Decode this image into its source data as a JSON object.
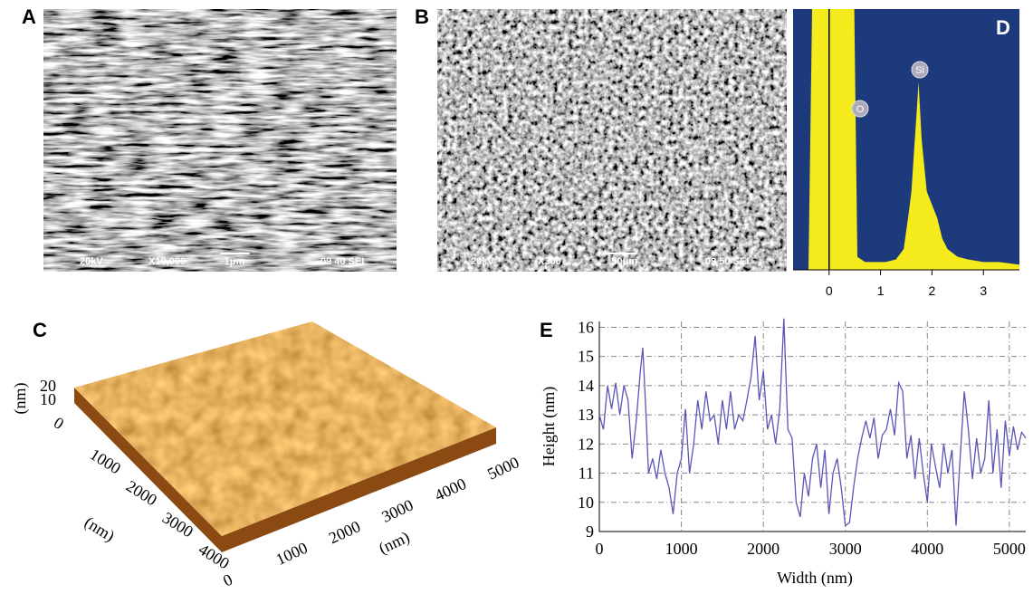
{
  "panels": {
    "A": {
      "label": "A",
      "info": [
        "20kV",
        "X10,000",
        "1μm",
        "09 40 SEI"
      ]
    },
    "B": {
      "label": "B",
      "info": [
        "20kV",
        "X300",
        "50μm",
        "09 50 SEI"
      ]
    },
    "C": {
      "label": "C",
      "z_ticks": [
        10,
        20
      ],
      "z_label": "(nm)",
      "y_ticks": [
        0,
        1000,
        2000,
        3000,
        4000
      ],
      "y_label": "(nm)",
      "x_ticks": [
        0,
        1000,
        2000,
        3000,
        4000,
        5000
      ],
      "x_label": "(nm)"
    }
  },
  "chart_data": [
    {
      "type": "area",
      "label": "D",
      "background": "#1d3a7c",
      "color": "#f4ea1c",
      "x": [
        -0.7,
        -0.4,
        -0.33,
        0.49,
        0.55,
        0.7,
        0.9,
        1.1,
        1.3,
        1.45,
        1.55,
        1.6,
        1.65,
        1.7,
        1.74,
        1.8,
        1.9,
        2.0,
        2.1,
        2.2,
        2.3,
        2.5,
        2.7,
        3.0,
        3.3,
        3.7
      ],
      "values": [
        0,
        0,
        100,
        100,
        5,
        3,
        3,
        3,
        4,
        8,
        22,
        30,
        45,
        60,
        72,
        50,
        30,
        25,
        20,
        12,
        8,
        5,
        4,
        3,
        3,
        2
      ],
      "annotations": [
        "O",
        "Si"
      ],
      "xlim": [
        -0.7,
        3.7
      ],
      "xticks": [
        0,
        1,
        2,
        3
      ],
      "ylim": [
        0,
        100
      ]
    },
    {
      "type": "line",
      "label": "E",
      "color": "#5b55b5",
      "x_label": "Width (nm)",
      "y_label": "Height (nm)",
      "x": [
        0,
        50,
        100,
        150,
        200,
        250,
        300,
        350,
        400,
        450,
        500,
        530,
        570,
        600,
        650,
        700,
        750,
        800,
        850,
        900,
        950,
        1000,
        1050,
        1100,
        1150,
        1200,
        1250,
        1300,
        1350,
        1400,
        1450,
        1500,
        1550,
        1600,
        1650,
        1700,
        1750,
        1800,
        1850,
        1900,
        1950,
        2000,
        2050,
        2100,
        2150,
        2200,
        2250,
        2280,
        2300,
        2350,
        2400,
        2450,
        2500,
        2550,
        2600,
        2650,
        2700,
        2750,
        2800,
        2850,
        2900,
        2950,
        3000,
        3050,
        3100,
        3150,
        3200,
        3250,
        3300,
        3350,
        3400,
        3450,
        3500,
        3550,
        3600,
        3650,
        3700,
        3750,
        3800,
        3850,
        3900,
        3950,
        4000,
        4050,
        4100,
        4150,
        4200,
        4250,
        4300,
        4350,
        4400,
        4450,
        4500,
        4550,
        4600,
        4650,
        4700,
        4750,
        4800,
        4850,
        4900,
        4950,
        5000,
        5050,
        5100,
        5150,
        5200
      ],
      "values": [
        13,
        12.5,
        14,
        13.2,
        14.1,
        13,
        14,
        13.5,
        11.5,
        12.8,
        14.5,
        15.3,
        13,
        11,
        11.5,
        10.8,
        11.8,
        11,
        10.5,
        9.6,
        11,
        11.5,
        13.2,
        11,
        12,
        13.5,
        12.5,
        13.8,
        12.8,
        13,
        12,
        13.5,
        12.5,
        13.8,
        12.5,
        13,
        12.8,
        13.5,
        14.3,
        15.7,
        13.5,
        14.5,
        12.5,
        13,
        12,
        13.2,
        16.3,
        14,
        12.5,
        12.2,
        10,
        9.5,
        11,
        10.2,
        11.5,
        12,
        10.5,
        11.8,
        9.6,
        11,
        11.5,
        10.5,
        9.2,
        9.3,
        10.5,
        11.5,
        12.2,
        12.8,
        12.2,
        12.9,
        11.5,
        12.3,
        12.5,
        13.2,
        12.3,
        14.1,
        13.8,
        11.5,
        12.3,
        10.8,
        12.2,
        11,
        10,
        12,
        11.2,
        10.5,
        12,
        11,
        11.8,
        9.2,
        11.5,
        13.8,
        12.5,
        10.8,
        12.2,
        11,
        11.5,
        13.5,
        11,
        12.5,
        10.5,
        12.8,
        11.6,
        12.6,
        11.8,
        12.4,
        12.2
      ],
      "xlim": [
        0,
        5200
      ],
      "xticks": [
        0,
        1000,
        2000,
        3000,
        4000,
        5000
      ],
      "ylim": [
        9,
        16.2
      ],
      "yticks": [
        9,
        10,
        11,
        12,
        13,
        14,
        15,
        16
      ],
      "grid": true
    }
  ]
}
